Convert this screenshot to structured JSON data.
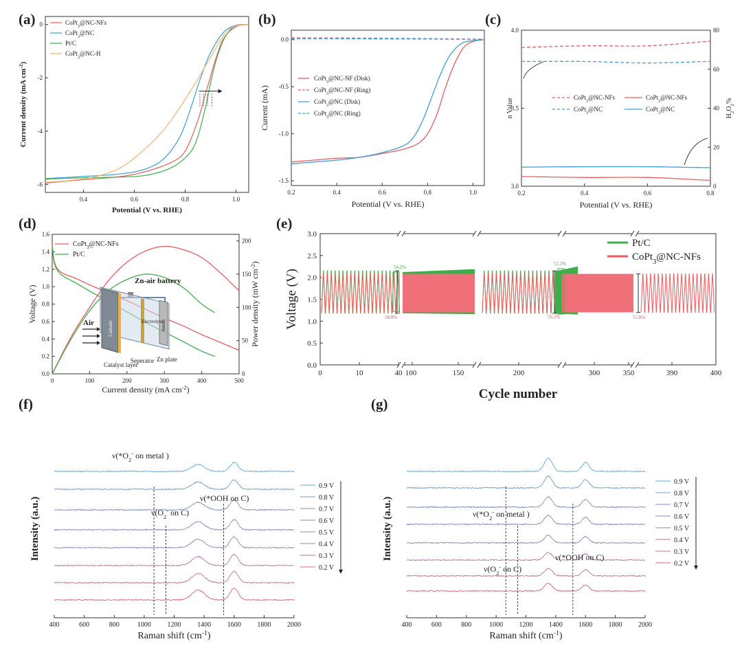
{
  "colors": {
    "red": "#ee5a5e",
    "blue": "#3b9fe0",
    "green": "#3fae4a",
    "orange": "#f5b56f",
    "dark": "#222222"
  },
  "panels": {
    "a": {
      "label": "(a)",
      "xlabel": "Potential (V vs. RHE)",
      "ylabel": "Current density (mA cm",
      "ylabel_sup": "-2",
      "ylabel_end": ")",
      "legend": [
        {
          "name": "CoPt",
          "sub": "3",
          "rest": "@NC-NFs",
          "color": "red"
        },
        {
          "name": "CoPt",
          "sub": "3",
          "rest": "@NC",
          "color": "blue"
        },
        {
          "name": "Pt/C",
          "sub": "",
          "rest": "",
          "color": "green"
        },
        {
          "name": "CoPt",
          "sub": "3",
          "rest": "@NC-H",
          "color": "orange"
        }
      ]
    },
    "b": {
      "label": "(b)",
      "xlabel": "Potential (V vs. RHE)",
      "ylabel": "Current (mA)",
      "legend": [
        {
          "name": "CoPt",
          "sub": "3",
          "rest": "@NC-NF (Disk)",
          "color": "red",
          "dash": false
        },
        {
          "name": "CoPt",
          "sub": "3",
          "rest": "@NC-NF (Ring)",
          "color": "red",
          "dash": true
        },
        {
          "name": "CoPt",
          "sub": "3",
          "rest": "@NC (Disk)",
          "color": "blue",
          "dash": false
        },
        {
          "name": "CoPt",
          "sub": "3",
          "rest": "@NC (Ring)",
          "color": "blue",
          "dash": true
        }
      ]
    },
    "c": {
      "label": "(c)",
      "xlabel": "Potential (V vs. RHE)",
      "ylabel_left": "n Value",
      "ylabel_right": "H2O2%",
      "legend": [
        {
          "name": "CoPt",
          "sub": "3",
          "rest": "@NC-NFs",
          "color": "red",
          "dash": true
        },
        {
          "name": "CoPt",
          "sub": "3",
          "rest": "@NC-NFs",
          "color": "red",
          "dash": false
        },
        {
          "name": "CoPt",
          "sub": "3",
          "rest": "@NC",
          "color": "blue",
          "dash": true
        },
        {
          "name": "CoPt",
          "sub": "3",
          "rest": "@NC",
          "color": "blue",
          "dash": false
        }
      ]
    },
    "d": {
      "label": "(d)",
      "xlabel": "Current density (mA cm",
      "xlabel_sup": "-2",
      "xlabel_end": ")",
      "ylabel_left": "Voltage (V)",
      "ylabel_right": "Power density (mW cm",
      "ylabel_right_sup": "-2",
      "ylabel_right_end": ")",
      "legend": [
        {
          "name": "CoPt",
          "sub": "3",
          "rest": "@NC-NFs",
          "color": "red"
        },
        {
          "name": "Pt/C",
          "sub": "",
          "rest": "",
          "color": "green"
        }
      ],
      "inset": {
        "title": "Zn-air battery",
        "air": "Air",
        "cathode": "Cathode",
        "anode": "Anode",
        "electrolyte": "Electrolyte",
        "catalyst": "Catalyst layer",
        "separator": "Seperator",
        "zn": "Zn plate"
      }
    },
    "e": {
      "label": "(e)",
      "xlabel": "Cycle number",
      "ylabel": "Voltage (V)",
      "legend": [
        {
          "name": "Pt/C",
          "sub": "",
          "rest": "",
          "color": "green"
        },
        {
          "name": "CoPt",
          "sub": "3",
          "rest": "@NC-NFs",
          "color": "red"
        }
      ],
      "annotations": [
        "54.2%",
        "58.0%",
        "51.3%",
        "56.2%",
        "55.0%"
      ]
    },
    "f": {
      "label": "(f)",
      "xlabel": "Raman shift (cm",
      "xlabel_sup": "-1",
      "xlabel_end": ")",
      "ylabel": "Intensity (a.u.)",
      "legend": [
        "0.9 V",
        "0.8 V",
        "0.7 V",
        "0.6 V",
        "0.5 V",
        "0.4 V",
        "0.3 V",
        "0.2 V"
      ],
      "annotations": {
        "metal": "ν(*O",
        "metal_end": " on metal )",
        "oc": "ν(O",
        "oc_end": " on C)",
        "ooh": "ν(*OOH on C)"
      }
    },
    "g": {
      "label": "(g)",
      "xlabel": "Raman shift (cm",
      "xlabel_sup": "-1",
      "xlabel_end": ")",
      "ylabel": "Intensity (a.u.)",
      "legend": [
        "0.9 V",
        "0.8 V",
        "0.7 V",
        "0.6 V",
        "0.5 V",
        "0.4 V",
        "0.3 V",
        "0.2 V"
      ],
      "annotations": {
        "metal": "ν(*O",
        "metal_end": " on metal )",
        "oc": "ν(O",
        "oc_end": " on C)",
        "ooh": "ν(*OOH on C)"
      }
    }
  },
  "chart_data": [
    {
      "panel": "a",
      "type": "line",
      "xlim": [
        0.25,
        1.05
      ],
      "ylim": [
        -6.3,
        0.3
      ],
      "xticks": [
        0.4,
        0.6,
        0.8,
        1.0
      ],
      "yticks": [
        0,
        -2,
        -4,
        -6
      ],
      "series": [
        {
          "name": "CoPt3@NC-NFs",
          "color": "red",
          "x": [
            0.25,
            0.4,
            0.55,
            0.65,
            0.75,
            0.8,
            0.85,
            0.88,
            0.9,
            0.92,
            0.95,
            1.0,
            1.05
          ],
          "y": [
            -5.95,
            -5.82,
            -5.7,
            -5.5,
            -5.15,
            -4.75,
            -3.6,
            -2.6,
            -1.95,
            -1.3,
            -0.55,
            -0.08,
            0.0
          ]
        },
        {
          "name": "CoPt3@NC",
          "color": "blue",
          "x": [
            0.25,
            0.4,
            0.55,
            0.65,
            0.72,
            0.78,
            0.82,
            0.85,
            0.88,
            0.9,
            0.95,
            1.0,
            1.05
          ],
          "y": [
            -5.78,
            -5.7,
            -5.6,
            -5.4,
            -5.0,
            -4.2,
            -3.2,
            -2.3,
            -1.5,
            -1.05,
            -0.3,
            -0.03,
            0.0
          ]
        },
        {
          "name": "Pt/C",
          "color": "green",
          "x": [
            0.25,
            0.4,
            0.55,
            0.65,
            0.75,
            0.82,
            0.85,
            0.88,
            0.9,
            0.92,
            0.95,
            0.98,
            1.0,
            1.05
          ],
          "y": [
            -5.8,
            -5.75,
            -5.72,
            -5.65,
            -5.35,
            -4.8,
            -4.2,
            -3.1,
            -2.2,
            -1.4,
            -0.6,
            -0.18,
            -0.05,
            0.0
          ]
        },
        {
          "name": "CoPt3@NC-H",
          "color": "orange",
          "x": [
            0.25,
            0.35,
            0.45,
            0.55,
            0.65,
            0.72,
            0.78,
            0.84,
            0.88,
            0.92,
            0.96,
            1.0,
            1.05
          ],
          "y": [
            -5.92,
            -5.85,
            -5.7,
            -5.35,
            -4.6,
            -3.9,
            -3.1,
            -2.2,
            -1.55,
            -0.9,
            -0.3,
            -0.05,
            0.0
          ]
        }
      ]
    },
    {
      "panel": "b",
      "type": "line",
      "xlim": [
        0.2,
        1.05
      ],
      "ylim": [
        -1.55,
        0.1
      ],
      "xticks": [
        0.2,
        0.4,
        0.6,
        0.8,
        1.0
      ],
      "yticks": [
        0.0,
        -0.5,
        -1.0,
        -1.5
      ],
      "series": [
        {
          "name": "CoPt3@NC-NF (Disk)",
          "color": "red",
          "dash": false,
          "x": [
            0.2,
            0.3,
            0.4,
            0.5,
            0.6,
            0.7,
            0.76,
            0.8,
            0.84,
            0.88,
            0.92,
            0.96,
            1.0,
            1.05
          ],
          "y": [
            -1.3,
            -1.28,
            -1.26,
            -1.25,
            -1.21,
            -1.16,
            -1.1,
            -1.0,
            -0.8,
            -0.5,
            -0.25,
            -0.08,
            -0.02,
            0.0
          ]
        },
        {
          "name": "CoPt3@NC-NF (Ring)",
          "color": "red",
          "dash": true,
          "x": [
            0.2,
            0.6,
            1.05
          ],
          "y": [
            0.02,
            0.015,
            0.005
          ]
        },
        {
          "name": "CoPt3@NC (Disk)",
          "color": "blue",
          "dash": false,
          "x": [
            0.2,
            0.3,
            0.4,
            0.5,
            0.6,
            0.7,
            0.74,
            0.78,
            0.82,
            0.86,
            0.9,
            0.95,
            1.0,
            1.05
          ],
          "y": [
            -1.32,
            -1.3,
            -1.28,
            -1.25,
            -1.2,
            -1.12,
            -1.03,
            -0.85,
            -0.6,
            -0.35,
            -0.16,
            -0.04,
            -0.01,
            0.0
          ]
        },
        {
          "name": "CoPt3@NC (Ring)",
          "color": "blue",
          "dash": true,
          "x": [
            0.2,
            0.6,
            1.05
          ],
          "y": [
            0.01,
            0.008,
            0.003
          ]
        }
      ]
    },
    {
      "panel": "c",
      "type": "line",
      "xlim": [
        0.2,
        0.8
      ],
      "ylim_left": [
        3.0,
        4.0
      ],
      "ylim_right": [
        0,
        80
      ],
      "xticks": [
        0.2,
        0.4,
        0.6,
        0.8
      ],
      "yticks_left": [
        3.0,
        3.5,
        4.0
      ],
      "yticks_right": [
        0,
        20,
        40,
        60,
        80
      ],
      "series": [
        {
          "name": "CoPt3@NC-NFs n",
          "color": "red",
          "dash": true,
          "axis": "left",
          "x": [
            0.2,
            0.4,
            0.6,
            0.8
          ],
          "y": [
            3.89,
            3.9,
            3.9,
            3.93
          ]
        },
        {
          "name": "CoPt3@NC n",
          "color": "blue",
          "dash": true,
          "axis": "left",
          "x": [
            0.2,
            0.4,
            0.6,
            0.8
          ],
          "y": [
            3.8,
            3.8,
            3.79,
            3.8
          ]
        },
        {
          "name": "CoPt3@NC-NFs H2O2",
          "color": "red",
          "dash": false,
          "axis": "right",
          "x": [
            0.2,
            0.4,
            0.6,
            0.8
          ],
          "y": [
            5.0,
            4.5,
            4.5,
            3.0
          ]
        },
        {
          "name": "CoPt3@NC H2O2",
          "color": "blue",
          "dash": false,
          "axis": "right",
          "x": [
            0.2,
            0.4,
            0.6,
            0.8
          ],
          "y": [
            9.8,
            10.0,
            10.0,
            9.5
          ]
        }
      ]
    },
    {
      "panel": "d",
      "type": "line",
      "xlim": [
        0,
        500
      ],
      "ylim_left": [
        0.0,
        1.6
      ],
      "ylim_right": [
        0,
        210
      ],
      "xticks": [
        0,
        100,
        200,
        300,
        400,
        500
      ],
      "yticks_left": [
        0.0,
        0.2,
        0.4,
        0.6,
        0.8,
        1.0,
        1.2,
        1.4,
        1.6
      ],
      "yticks_right": [
        0,
        50,
        100,
        150,
        200
      ],
      "series": [
        {
          "name": "CoPt3@NC-NFs voltage",
          "color": "red",
          "axis": "left",
          "x": [
            0,
            5,
            15,
            30,
            60,
            100,
            150,
            200,
            250,
            300,
            350,
            400,
            450,
            500
          ],
          "y": [
            1.48,
            1.3,
            1.2,
            1.15,
            1.1,
            1.02,
            0.93,
            0.84,
            0.74,
            0.64,
            0.55,
            0.45,
            0.36,
            0.27
          ]
        },
        {
          "name": "Pt/C voltage",
          "color": "green",
          "axis": "left",
          "x": [
            0,
            5,
            15,
            30,
            60,
            100,
            150,
            200,
            250,
            300,
            350,
            400,
            435
          ],
          "y": [
            1.46,
            1.28,
            1.18,
            1.12,
            1.05,
            0.95,
            0.83,
            0.71,
            0.59,
            0.48,
            0.37,
            0.26,
            0.2
          ]
        },
        {
          "name": "CoPt3@NC-NFs power",
          "color": "red",
          "axis": "right",
          "x": [
            0,
            50,
            100,
            150,
            200,
            250,
            300,
            350,
            400,
            450,
            500
          ],
          "y": [
            0,
            55,
            100,
            140,
            168,
            185,
            192,
            187,
            175,
            152,
            125
          ]
        },
        {
          "name": "Pt/C power",
          "color": "green",
          "axis": "right",
          "x": [
            0,
            50,
            100,
            150,
            200,
            250,
            300,
            350,
            400,
            435
          ],
          "y": [
            0,
            52,
            95,
            125,
            142,
            150,
            145,
            130,
            105,
            92
          ]
        }
      ]
    },
    {
      "panel": "e",
      "type": "line",
      "ylim": [
        0.0,
        3.0
      ],
      "yticks": [
        0.0,
        0.5,
        1.0,
        1.5,
        2.0,
        2.5,
        3.0
      ],
      "xticks": [
        0,
        10,
        20,
        30,
        40,
        50,
        60,
        70,
        100,
        150,
        200,
        300,
        350,
        390,
        400
      ],
      "series": [
        {
          "name": "Pt/C",
          "color": "green",
          "charge_voltage": 2.15,
          "discharge_voltage": 1.18
        },
        {
          "name": "CoPt3@NC-NFs",
          "color": "red",
          "charge_voltage": 2.08,
          "discharge_voltage": 1.2
        }
      ]
    },
    {
      "panel": "f",
      "type": "line",
      "xlim": [
        400,
        2000
      ],
      "xticks": [
        400,
        600,
        800,
        1000,
        1200,
        1400,
        1600,
        1800,
        2000
      ],
      "guide_lines": [
        1065,
        1145,
        1530
      ],
      "series_names": [
        "0.9 V",
        "0.8 V",
        "0.7 V",
        "0.6 V",
        "0.5 V",
        "0.4 V",
        "0.3 V",
        "0.2 V"
      ]
    },
    {
      "panel": "g",
      "type": "line",
      "xlim": [
        400,
        2000
      ],
      "xticks": [
        400,
        600,
        800,
        1000,
        1200,
        1400,
        1600,
        1800,
        2000
      ],
      "guide_lines": [
        1065,
        1145,
        1515
      ],
      "series_names": [
        "0.9 V",
        "0.8 V",
        "0.7 V",
        "0.6 V",
        "0.5 V",
        "0.4 V",
        "0.3 V",
        "0.2 V"
      ]
    }
  ]
}
